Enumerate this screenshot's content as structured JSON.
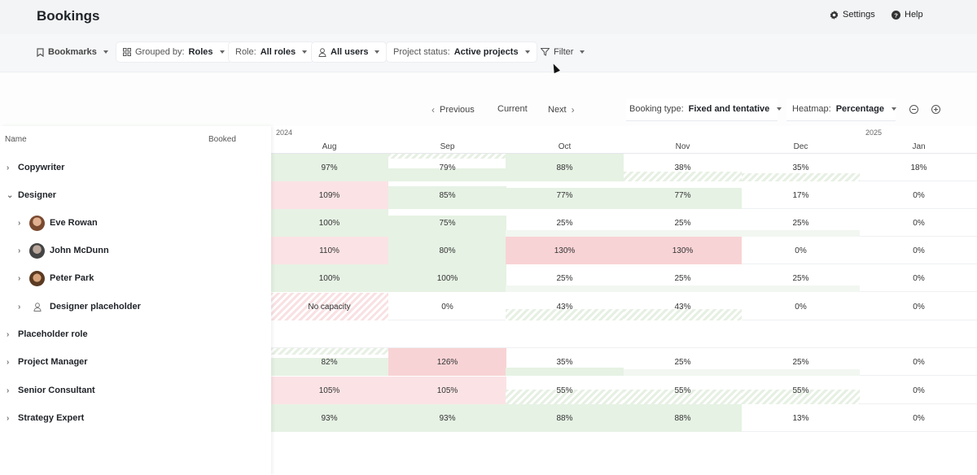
{
  "header": {
    "title": "Bookings",
    "settings_label": "Settings",
    "help_label": "Help"
  },
  "filters": {
    "bookmarks": "Bookmarks",
    "grouped_prefix": "Grouped by:",
    "grouped_value": "Roles",
    "role_prefix": "Role:",
    "role_value": "All roles",
    "users_value": "All users",
    "status_prefix": "Project status:",
    "status_value": "Active projects",
    "filter_label": "Filter"
  },
  "toolbar": {
    "previous": "Previous",
    "current": "Current",
    "next": "Next",
    "booking_type_prefix": "Booking type:",
    "booking_type_value": "Fixed and tentative",
    "heatmap_prefix": "Heatmap:",
    "heatmap_value": "Percentage"
  },
  "columns": {
    "name": "Name",
    "booked": "Booked"
  },
  "years": [
    "2024",
    "2025"
  ],
  "months": [
    "Aug",
    "Sep",
    "Oct",
    "Nov",
    "Dec",
    "Jan"
  ],
  "rows": [
    {
      "label": "Copywriter",
      "cells": [
        "97%",
        "79%",
        "88%",
        "38%",
        "35%",
        "18%"
      ]
    },
    {
      "label": "Designer",
      "cells": [
        "109%",
        "85%",
        "77%",
        "77%",
        "17%",
        "0%"
      ]
    },
    {
      "label": "Eve Rowan",
      "cells": [
        "100%",
        "75%",
        "25%",
        "25%",
        "25%",
        "0%"
      ]
    },
    {
      "label": "John McDunn",
      "cells": [
        "110%",
        "80%",
        "130%",
        "130%",
        "0%",
        "0%"
      ]
    },
    {
      "label": "Peter Park",
      "cells": [
        "100%",
        "100%",
        "25%",
        "25%",
        "25%",
        "0%"
      ]
    },
    {
      "label": "Designer placeholder",
      "cells": [
        "No capacity",
        "0%",
        "43%",
        "43%",
        "0%",
        "0%"
      ]
    },
    {
      "label": "Placeholder role",
      "cells": [
        "",
        "",
        "",
        "",
        "",
        ""
      ]
    },
    {
      "label": "Project Manager",
      "cells": [
        "82%",
        "126%",
        "35%",
        "25%",
        "25%",
        "0%"
      ]
    },
    {
      "label": "Senior Consultant",
      "cells": [
        "105%",
        "105%",
        "55%",
        "55%",
        "55%",
        "0%"
      ]
    },
    {
      "label": "Strategy Expert",
      "cells": [
        "93%",
        "93%",
        "88%",
        "88%",
        "13%",
        "0%"
      ]
    }
  ],
  "icons": {
    "bookmark": "bookmark-icon",
    "group": "group-icon",
    "user": "user-icon",
    "filter": "filter-icon",
    "settings": "gear-icon",
    "help": "help-icon",
    "zoom_out": "zoom-out-icon",
    "zoom_in": "zoom-in-icon"
  },
  "colors": {
    "over": "#f8d3d5",
    "booked": "#e6f2e4",
    "tentative_over": "#fbe3e5"
  }
}
